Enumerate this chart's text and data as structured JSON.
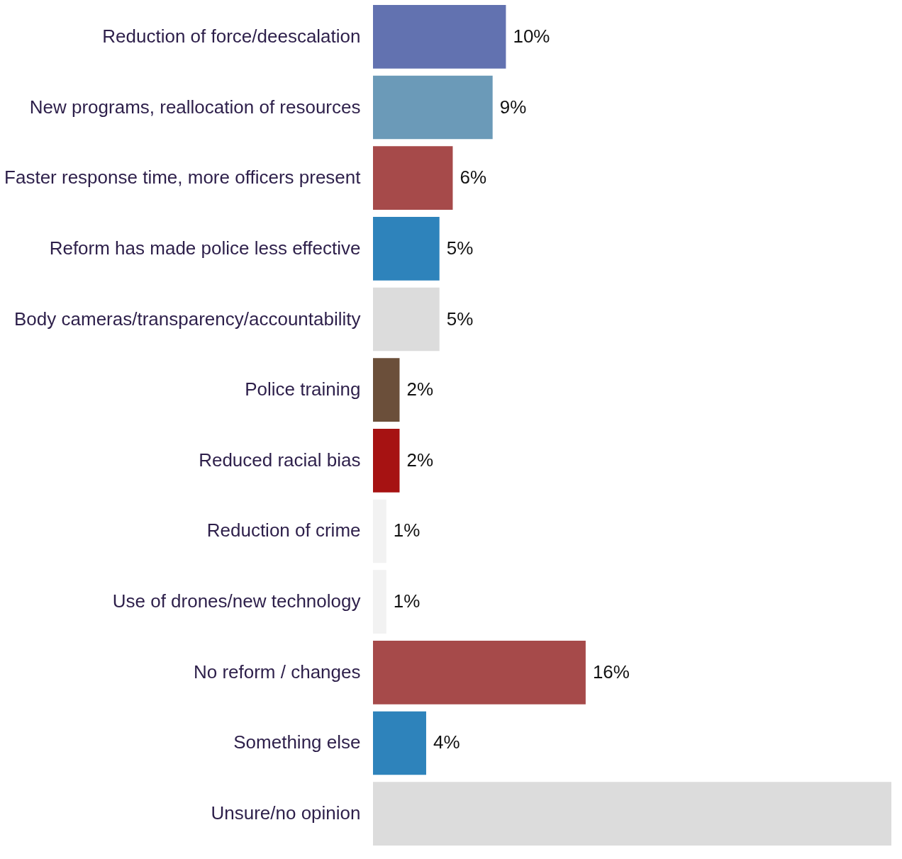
{
  "chart_data": {
    "type": "bar",
    "orientation": "horizontal",
    "categories": [
      "Reduction of force/deescalation",
      "New programs, reallocation of resources",
      "Faster response time, more officers present",
      "Reform has made police less effective",
      "Body cameras/transparency/accountability",
      "Police training",
      "Reduced racial bias",
      "Reduction of crime",
      "Use of drones/new technology",
      "No reform / changes",
      "Something else",
      "Unsure/no opinion"
    ],
    "values": [
      10,
      9,
      6,
      5,
      5,
      2,
      2,
      1,
      1,
      16,
      4,
      39
    ],
    "colors": [
      "#6272b0",
      "#6b9ab8",
      "#a64a4a",
      "#2e83bb",
      "#dcdcdc",
      "#6b4f3a",
      "#a61212",
      "#f2f2f2",
      "#f2f2f2",
      "#a64a4a",
      "#2e83bb",
      "#dcdcdc"
    ],
    "value_labels": [
      "10%",
      "9%",
      "6%",
      "5%",
      "5%",
      "2%",
      "2%",
      "1%",
      "1%",
      "16%",
      "4%",
      null
    ]
  }
}
